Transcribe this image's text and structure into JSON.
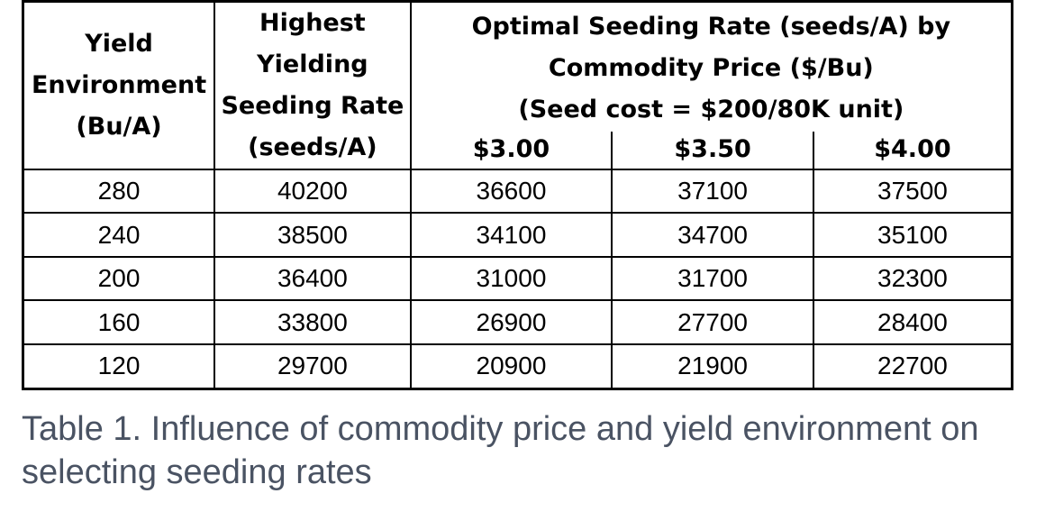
{
  "table": {
    "headers": {
      "yield_environment": "Yield Environment (Bu/A)",
      "highest_yielding": "Highest Yielding Seeding Rate (seeds/A)",
      "optimal_group": "Optimal Seeding Rate (seeds/A) by Commodity Price ($/Bu)",
      "seed_cost": "(Seed cost = $200/80K unit)",
      "prices": [
        "$3.00",
        "$3.50",
        "$4.00"
      ]
    },
    "rows": [
      [
        "280",
        "40200",
        "36600",
        "37100",
        "37500"
      ],
      [
        "240",
        "38500",
        "34100",
        "34700",
        "35100"
      ],
      [
        "200",
        "36400",
        "31000",
        "31700",
        "32300"
      ],
      [
        "160",
        "33800",
        "26900",
        "27700",
        "28400"
      ],
      [
        "120",
        "29700",
        "20900",
        "21900",
        "22700"
      ]
    ]
  },
  "caption": "Table 1. Influence of commodity price and yield environment on selecting seeding rates"
}
